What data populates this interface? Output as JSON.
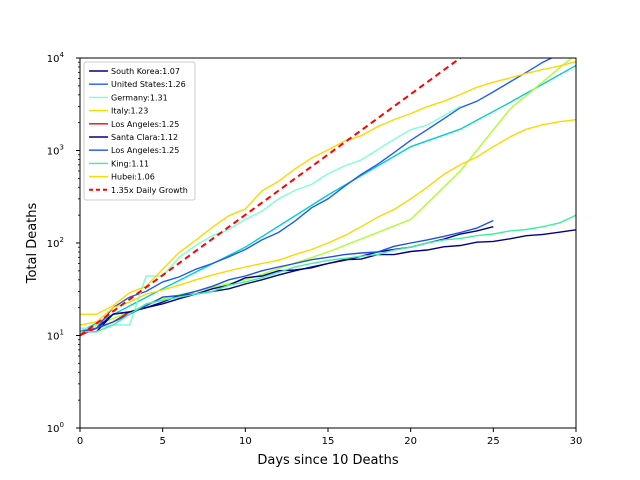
{
  "chart_data": {
    "type": "line",
    "title": "",
    "xlabel": "Days since 10 Deaths",
    "ylabel": "Total Deaths",
    "xlim": [
      0,
      30
    ],
    "ylim": [
      1,
      10000
    ],
    "yscale": "log",
    "grid": false,
    "legend_position": "top-left",
    "x_ticks": [
      "0",
      "5",
      "10",
      "15",
      "20",
      "25",
      "30"
    ],
    "x_tick_values": [
      0,
      5,
      10,
      15,
      20,
      25,
      30
    ],
    "y_ticks": [
      {
        "value": 1,
        "base": "10",
        "exp": "0"
      },
      {
        "value": 10,
        "base": "10",
        "exp": "1"
      },
      {
        "value": 100,
        "base": "10",
        "exp": "2"
      },
      {
        "value": 1000,
        "base": "10",
        "exp": "3"
      },
      {
        "value": 10000,
        "base": "10",
        "exp": "4"
      }
    ],
    "series": [
      {
        "name": "South Korea:1.07",
        "color": "#00008b",
        "style": "solid",
        "x": [
          0,
          1,
          2,
          3,
          4,
          5,
          6,
          7,
          8,
          9,
          10,
          11,
          12,
          13,
          14,
          15,
          16,
          17,
          18,
          19,
          20,
          21,
          22,
          23,
          24,
          25,
          26,
          27,
          28,
          29,
          30
        ],
        "y": [
          11,
          12,
          17,
          18,
          20,
          22,
          25,
          28,
          32,
          35,
          42,
          44,
          50,
          51,
          54,
          60,
          66,
          67,
          75,
          75,
          81,
          84,
          91,
          94,
          102,
          104,
          111,
          120,
          124,
          131,
          139
        ]
      },
      {
        "name": "United States:1.26",
        "color": "#1e5cf5",
        "style": "solid",
        "x": [
          0,
          1,
          2,
          3,
          4,
          5,
          6,
          7,
          8,
          9,
          10,
          11,
          12,
          13,
          14,
          15,
          16,
          17,
          18,
          19,
          20,
          21,
          22,
          23,
          24,
          25,
          26,
          27,
          28,
          29,
          30
        ],
        "y": [
          11,
          12,
          20,
          26,
          30,
          38,
          43,
          52,
          60,
          71,
          85,
          108,
          130,
          172,
          240,
          300,
          410,
          550,
          710,
          950,
          1290,
          1680,
          2200,
          2900,
          3400,
          4300,
          5500,
          7000,
          9000,
          11000,
          14000
        ]
      },
      {
        "name": "Germany:1.31",
        "color": "#7fffd4",
        "style": "solid",
        "x": [
          0,
          1,
          2,
          3,
          4,
          5,
          6,
          7,
          8,
          9,
          10,
          11,
          12,
          13,
          14,
          15,
          16,
          17,
          18,
          19,
          20,
          21,
          22,
          23
        ],
        "y": [
          12,
          12,
          13,
          13,
          44,
          44,
          70,
          94,
          120,
          140,
          180,
          220,
          300,
          370,
          430,
          560,
          680,
          790,
          1020,
          1320,
          1680,
          1880,
          2380,
          3000
        ]
      },
      {
        "name": "Italy:1.23",
        "color": "#ffd700",
        "style": "solid",
        "x": [
          0,
          1,
          2,
          3,
          4,
          5,
          6,
          7,
          8,
          9,
          10,
          11,
          12,
          13,
          14,
          15,
          16,
          17,
          18,
          19,
          20,
          21,
          22,
          23,
          24,
          25,
          26,
          27,
          28,
          29,
          30
        ],
        "y": [
          17,
          17,
          21,
          29,
          34,
          52,
          79,
          107,
          148,
          197,
          233,
          366,
          463,
          631,
          827,
          1016,
          1266,
          1441,
          1809,
          2158,
          2503,
          2978,
          3405,
          4032,
          4825,
          5476,
          6077,
          6820,
          7503,
          8165,
          9134
        ]
      },
      {
        "name": "Los Angeles:1.25",
        "color": "#ff0000",
        "style": "solid",
        "x": [
          0,
          1,
          2,
          3
        ],
        "y": [
          10,
          12,
          14,
          18
        ]
      },
      {
        "name": "Santa Clara:1.12",
        "color": "#00008b",
        "style": "solid",
        "x": [
          0,
          1,
          2,
          3,
          4,
          5,
          6,
          7,
          8,
          9,
          10,
          11,
          12,
          13,
          14,
          15,
          16,
          17,
          18,
          19,
          20,
          21,
          22,
          23,
          24,
          25
        ],
        "y": [
          11,
          11,
          17,
          18,
          20,
          23,
          27,
          28,
          30,
          32,
          36,
          40,
          45,
          50,
          55,
          60,
          65,
          72,
          80,
          85,
          90,
          100,
          110,
          125,
          135,
          150
        ]
      },
      {
        "name": "Los Angeles:1.25",
        "color": "#1e50e6",
        "style": "solid",
        "x": [
          0,
          1,
          2,
          3,
          4,
          5,
          6,
          7,
          8,
          9,
          10,
          11,
          12,
          13,
          14,
          15,
          16,
          17,
          18,
          19,
          20,
          21,
          22,
          23,
          24,
          25
        ],
        "y": [
          11,
          12,
          14,
          17,
          21,
          26,
          27,
          30,
          34,
          40,
          44,
          50,
          55,
          60,
          66,
          70,
          75,
          78,
          80,
          92,
          100,
          108,
          118,
          130,
          145,
          175
        ]
      },
      {
        "name": "King:1.11",
        "color": "#3cf0a0",
        "style": "solid",
        "x": [
          0,
          1,
          2,
          3,
          4,
          5,
          6,
          7,
          8,
          9,
          10,
          11,
          12,
          13,
          14,
          15,
          16,
          17,
          18,
          19,
          20,
          21,
          22,
          23,
          24,
          25,
          26,
          27,
          28,
          29,
          30
        ],
        "y": [
          11,
          11,
          13,
          17,
          22,
          24,
          26,
          28,
          30,
          35,
          38,
          42,
          48,
          55,
          60,
          65,
          68,
          72,
          75,
          84,
          90,
          100,
          108,
          112,
          120,
          125,
          135,
          140,
          150,
          165,
          200
        ]
      },
      {
        "name": "Hubei:1.06",
        "color": "#ffd700",
        "style": "solid",
        "x": [
          0,
          1,
          2,
          3,
          4,
          5,
          6,
          7,
          8,
          9,
          10,
          11,
          12,
          13,
          14,
          15,
          16,
          17,
          18,
          19,
          20,
          21,
          22,
          23,
          24,
          25,
          26,
          27,
          28,
          29,
          30
        ],
        "y": [
          13,
          14,
          20,
          23,
          28,
          31,
          35,
          40,
          45,
          50,
          55,
          60,
          65,
          75,
          85,
          100,
          120,
          150,
          190,
          230,
          300,
          400,
          550,
          700,
          850,
          1100,
          1400,
          1700,
          1900,
          2050,
          2150
        ]
      },
      {
        "name": "1.35x Daily Growth",
        "color": "#ff0000",
        "style": "dashed",
        "x": [
          0,
          23
        ],
        "y": [
          10,
          10000
        ]
      }
    ],
    "extra_lines": [
      {
        "color": "#00ced1",
        "x": [
          0,
          5,
          10,
          15,
          20,
          23,
          26,
          30
        ],
        "y": [
          11,
          32,
          90,
          330,
          1100,
          1700,
          3300,
          8300
        ]
      },
      {
        "color": "#adff2f",
        "x": [
          0,
          5,
          10,
          15,
          20,
          23,
          26,
          30
        ],
        "y": [
          11,
          25,
          40,
          80,
          180,
          600,
          2800,
          11000
        ]
      }
    ]
  }
}
